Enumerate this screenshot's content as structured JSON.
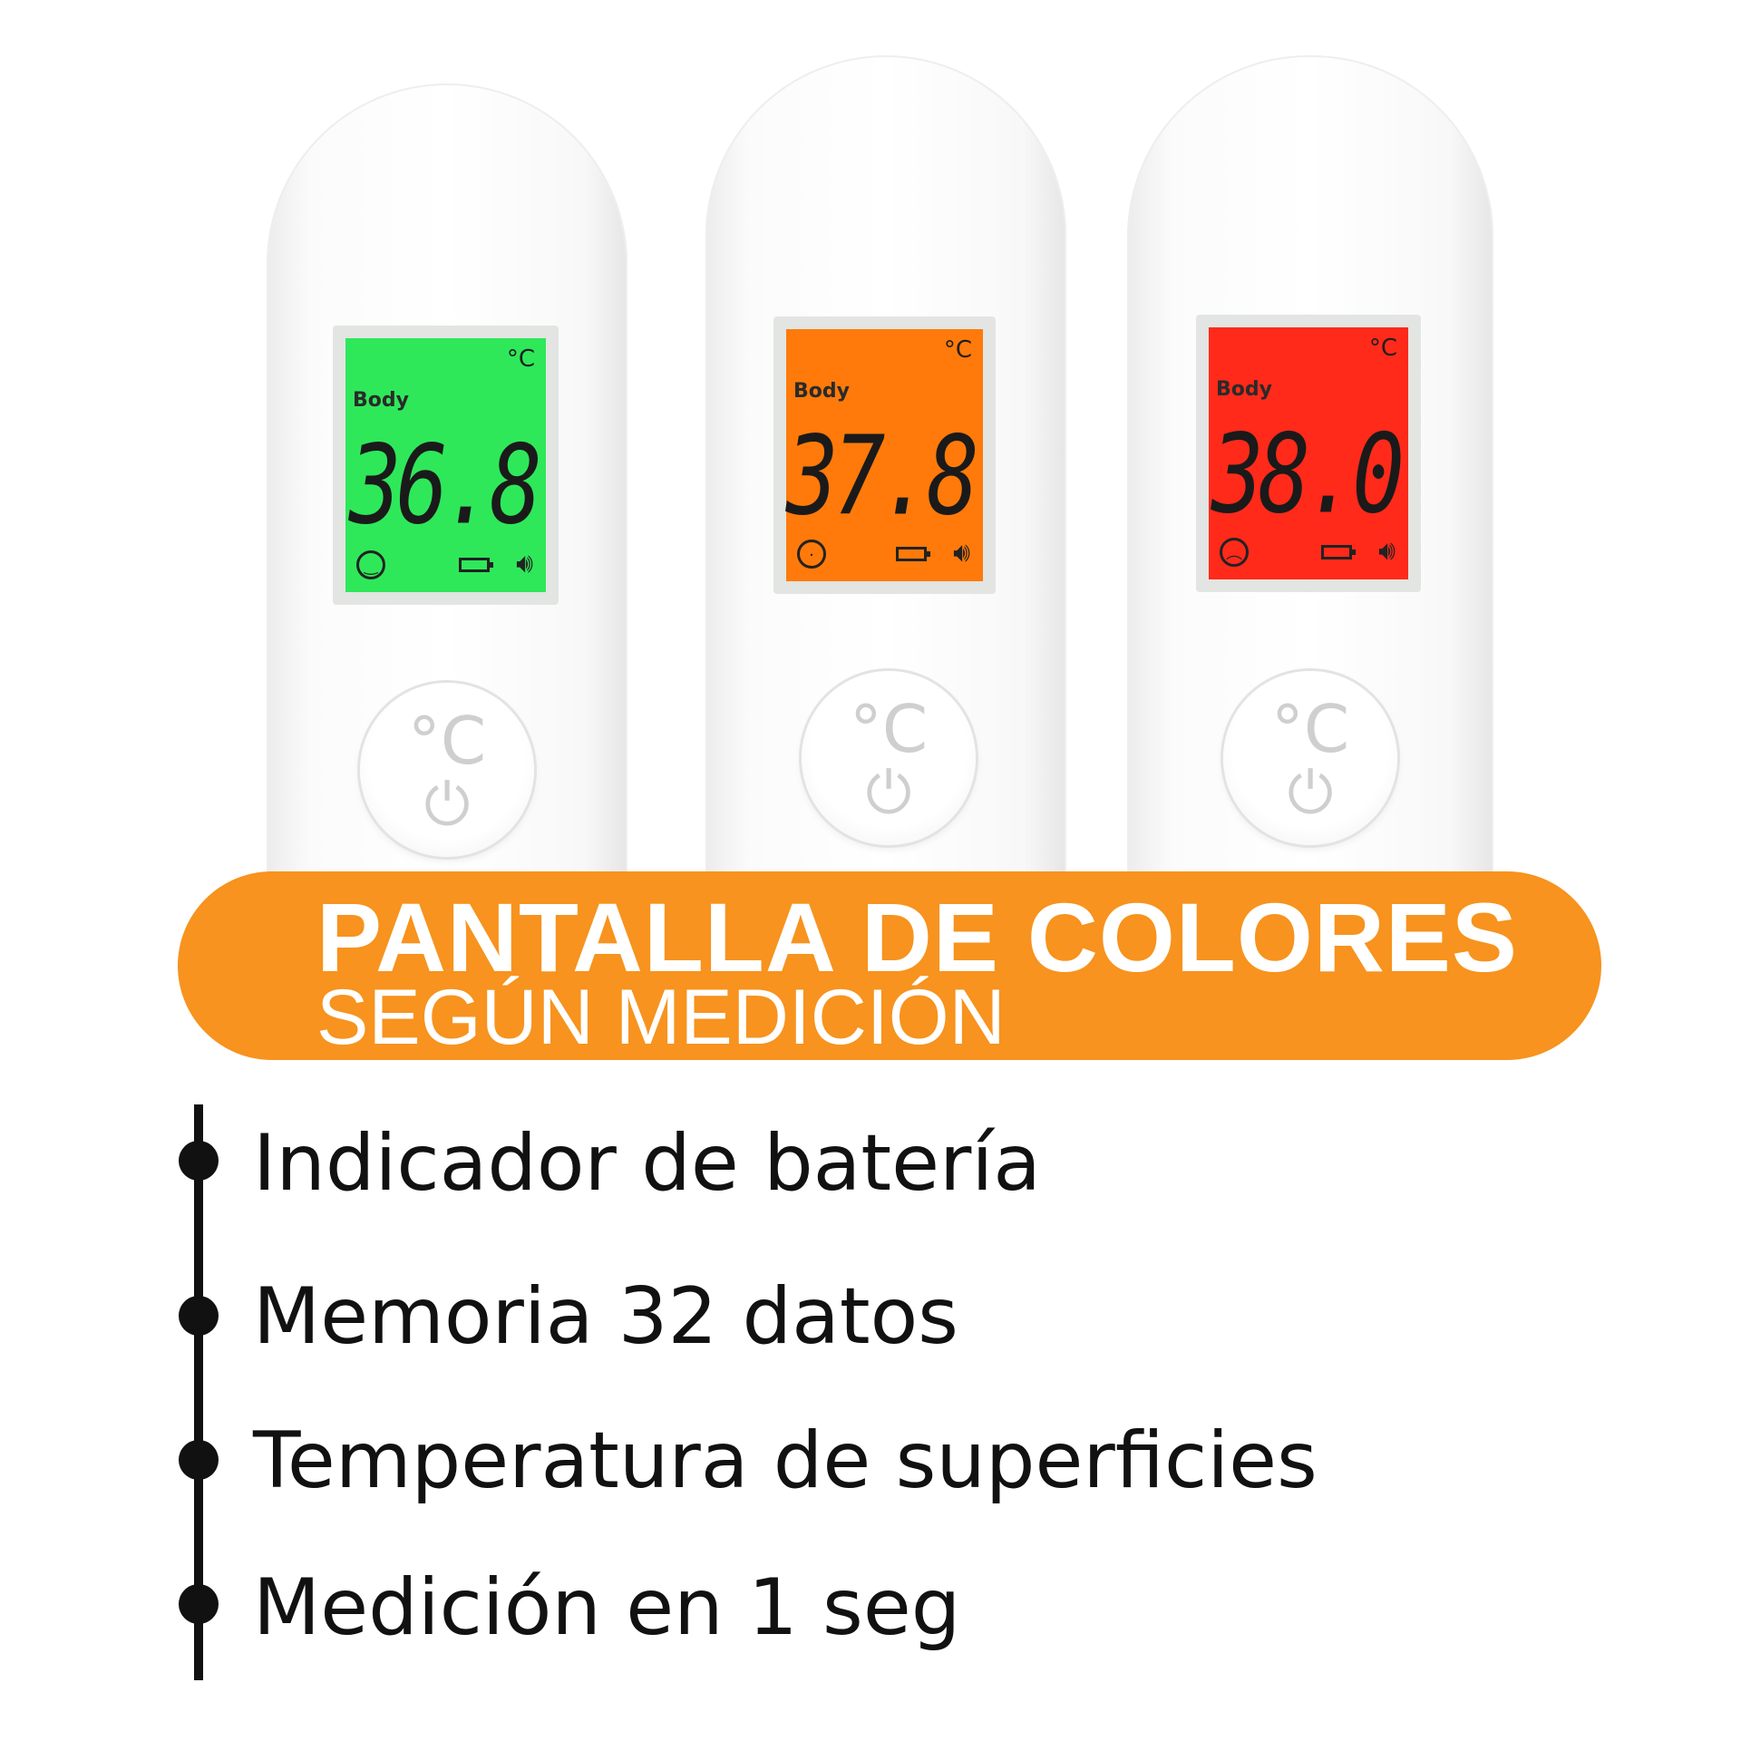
{
  "thermometers": [
    {
      "unit": "°C",
      "mode": "Body",
      "reading": "36.8",
      "face": "☺",
      "screen_color": "#2ee85a",
      "button_unit": "°C",
      "power_icon": "power-icon"
    },
    {
      "unit": "°C",
      "mode": "Body",
      "reading": "37.8",
      "face": "☹",
      "screen_color": "#ff7a0a",
      "button_unit": "°C",
      "power_icon": "power-icon"
    },
    {
      "unit": "°C",
      "mode": "Body",
      "reading": "38.0",
      "face": "☹",
      "screen_color": "#ff2a1a",
      "button_unit": "°C",
      "power_icon": "power-icon"
    }
  ],
  "banner": {
    "title": "PANTALLA DE COLORES",
    "subtitle": "SEGÚN MEDICIÓN",
    "color": "#f7931e"
  },
  "features": [
    "Indicador de batería",
    "Memoria 32 datos",
    "Temperatura de superficies",
    "Medición en 1 seg"
  ]
}
